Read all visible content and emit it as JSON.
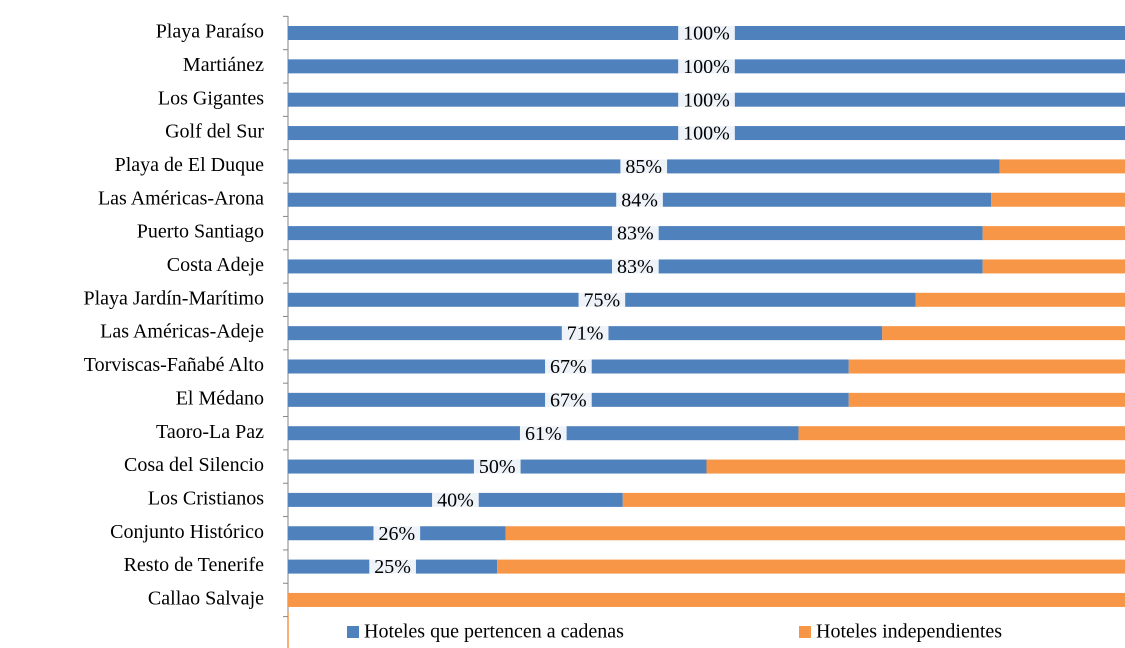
{
  "chart_data": {
    "type": "bar",
    "orientation": "horizontal",
    "stacked": true,
    "categories": [
      "Playa Paraíso",
      "Martiánez",
      "Los Gigantes",
      "Golf del Sur",
      "Playa de El Duque",
      "Las Américas-Arona",
      "Puerto Santiago",
      "Costa Adeje",
      "Playa Jardín-Marítimo",
      "Las Américas-Adeje",
      "Torviscas-Fañabé Alto",
      "El Médano",
      "Taoro-La Paz",
      "Cosa del Silencio",
      "Los Cristianos",
      "Conjunto Histórico",
      "Resto de Tenerife",
      "Callao Salvaje"
    ],
    "series": [
      {
        "name": "Hoteles que pertencen a cadenas",
        "color": "#4f81bd",
        "values": [
          100,
          100,
          100,
          100,
          85,
          84,
          83,
          83,
          75,
          71,
          67,
          67,
          61,
          50,
          40,
          26,
          25,
          0
        ],
        "value_labels": [
          "100%",
          "100%",
          "100%",
          "100%",
          "85%",
          "84%",
          "83%",
          "83%",
          "75%",
          "71%",
          "67%",
          "67%",
          "61%",
          "50%",
          "40%",
          "26%",
          "25%",
          null
        ]
      },
      {
        "name": "Hoteles independientes",
        "color": "#f79646",
        "values": [
          0,
          0,
          0,
          0,
          15,
          16,
          17,
          17,
          25,
          29,
          33,
          33,
          39,
          50,
          60,
          74,
          75,
          100
        ]
      }
    ],
    "xlim": [
      0,
      100
    ],
    "legend": "bottom"
  }
}
